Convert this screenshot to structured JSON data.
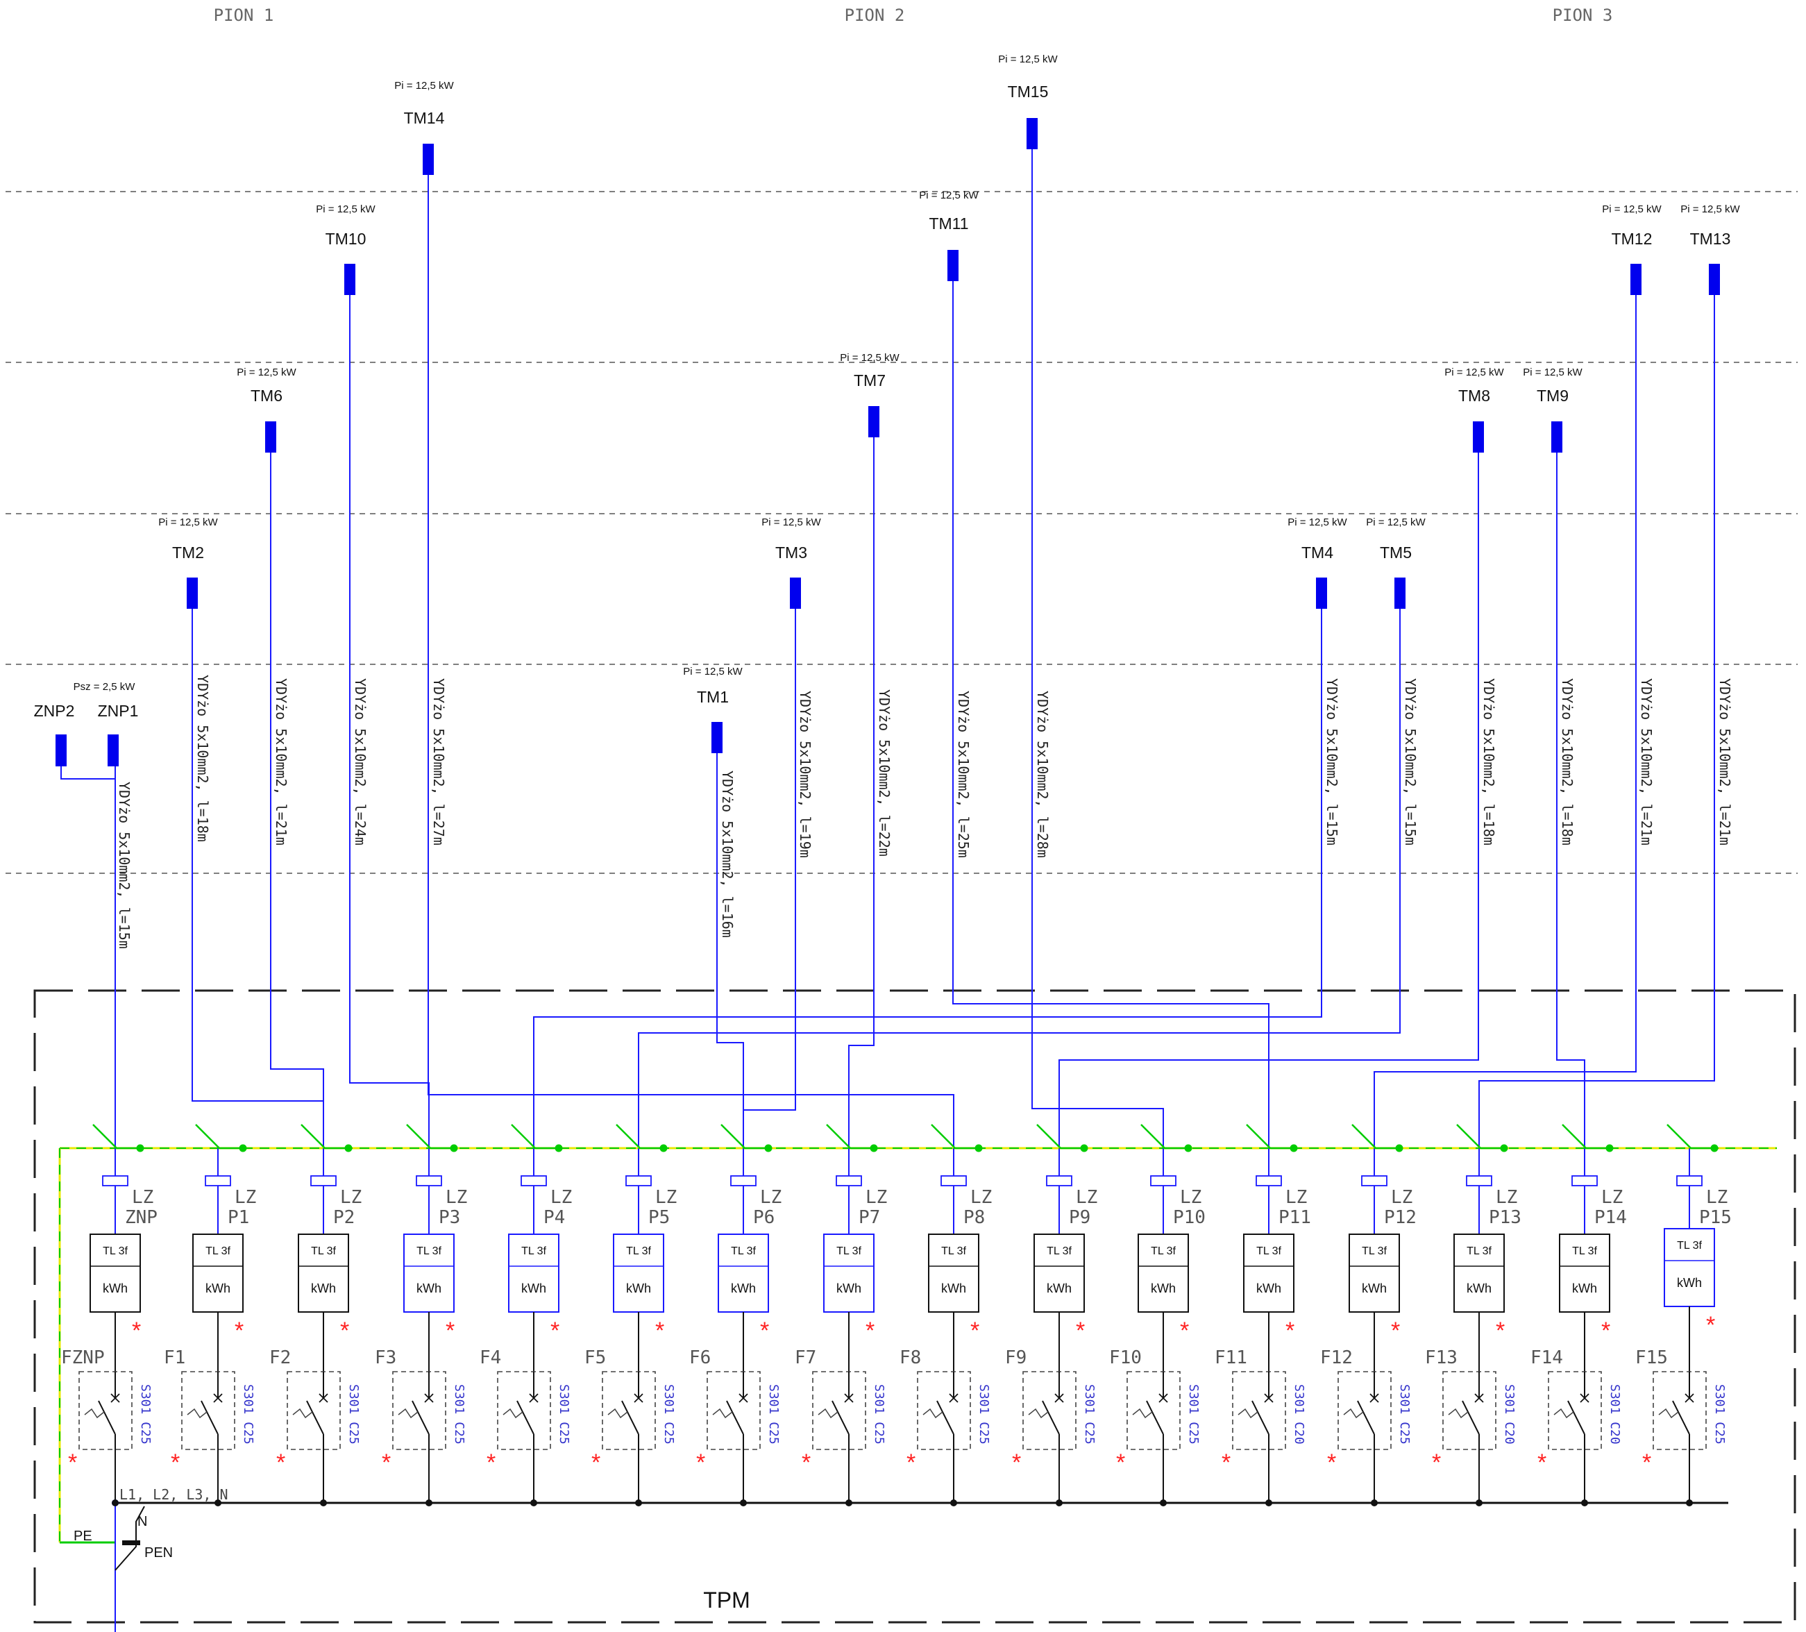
{
  "title": "TPM",
  "risers": [
    {
      "label": "PION 1"
    },
    {
      "label": "PION 2"
    },
    {
      "label": "PION 3"
    }
  ],
  "connectors": [
    "ZNP2",
    "ZNP1"
  ],
  "znp_power": "Psz = 2,5 kW",
  "znp_cable": "YDYżo 5x10mm2, l=15m",
  "loads": [
    {
      "name": "TM1",
      "power": "Pi = 12,5 kW",
      "cable": "YDYżo 5x10mm2, l=16m"
    },
    {
      "name": "TM2",
      "power": "Pi = 12,5 kW",
      "cable": "YDYżo 5x10mm2, l=18m"
    },
    {
      "name": "TM3",
      "power": "Pi = 12,5 kW",
      "cable": "YDYżo 5x10mm2, l=19m"
    },
    {
      "name": "TM4",
      "power": "Pi = 12,5 kW",
      "cable": "YDYżo 5x10mm2, l=15m"
    },
    {
      "name": "TM5",
      "power": "Pi = 12,5 kW",
      "cable": "YDYżo 5x10mm2, l=15m"
    },
    {
      "name": "TM6",
      "power": "Pi = 12,5 kW",
      "cable": "YDYżo 5x10mm2, l=21m"
    },
    {
      "name": "TM7",
      "power": "Pi = 12,5 kW",
      "cable": "YDYżo 5x10mm2, l=22m"
    },
    {
      "name": "TM8",
      "power": "Pi = 12,5 kW",
      "cable": "YDYżo 5x10mm2, l=18m"
    },
    {
      "name": "TM9",
      "power": "Pi = 12,5 kW",
      "cable": "YDYżo 5x10mm2, l=18m"
    },
    {
      "name": "TM10",
      "power": "Pi = 12,5 kW",
      "cable": "YDYżo 5x10mm2, l=24m"
    },
    {
      "name": "TM11",
      "power": "Pi = 12,5 kW",
      "cable": "YDYżo 5x10mm2, l=25m"
    },
    {
      "name": "TM12",
      "power": "Pi = 12,5 kW",
      "cable": "YDYżo 5x10mm2, l=21m"
    },
    {
      "name": "TM13",
      "power": "Pi = 12,5 kW",
      "cable": "YDYżo 5x10mm2, l=21m"
    },
    {
      "name": "TM14",
      "power": "Pi = 12,5 kW",
      "cable": "YDYżo 5x10mm2, l=27m"
    },
    {
      "name": "TM15",
      "power": "Pi = 12,5 kW",
      "cable": "YDYżo 5x10mm2, l=28m"
    }
  ],
  "circuits": [
    {
      "lz": "LZ",
      "p": "ZNP",
      "fuse": "FZNP",
      "breaker": "S301 C25",
      "meter": "TL 3f",
      "unit": "kWh"
    },
    {
      "lz": "LZ",
      "p": "P1",
      "fuse": "F1",
      "breaker": "S301 C25",
      "meter": "TL 3f",
      "unit": "kWh"
    },
    {
      "lz": "LZ",
      "p": "P2",
      "fuse": "F2",
      "breaker": "S301 C25",
      "meter": "TL 3f",
      "unit": "kWh"
    },
    {
      "lz": "LZ",
      "p": "P3",
      "fuse": "F3",
      "breaker": "S301 C25",
      "meter": "TL 3f",
      "unit": "kWh"
    },
    {
      "lz": "LZ",
      "p": "P4",
      "fuse": "F4",
      "breaker": "S301 C25",
      "meter": "TL 3f",
      "unit": "kWh"
    },
    {
      "lz": "LZ",
      "p": "P5",
      "fuse": "F5",
      "breaker": "S301 C25",
      "meter": "TL 3f",
      "unit": "kWh"
    },
    {
      "lz": "LZ",
      "p": "P6",
      "fuse": "F6",
      "breaker": "S301 C25",
      "meter": "TL 3f",
      "unit": "kWh"
    },
    {
      "lz": "LZ",
      "p": "P7",
      "fuse": "F7",
      "breaker": "S301 C25",
      "meter": "TL 3f",
      "unit": "kWh"
    },
    {
      "lz": "LZ",
      "p": "P8",
      "fuse": "F8",
      "breaker": "S301 C25",
      "meter": "TL 3f",
      "unit": "kWh"
    },
    {
      "lz": "LZ",
      "p": "P9",
      "fuse": "F9",
      "breaker": "S301 C25",
      "meter": "TL 3f",
      "unit": "kWh"
    },
    {
      "lz": "LZ",
      "p": "P10",
      "fuse": "F10",
      "breaker": "S301 C25",
      "meter": "TL 3f",
      "unit": "kWh"
    },
    {
      "lz": "LZ",
      "p": "P11",
      "fuse": "F11",
      "breaker": "S301 C20",
      "meter": "TL 3f",
      "unit": "kWh"
    },
    {
      "lz": "LZ",
      "p": "P12",
      "fuse": "F12",
      "breaker": "S301 C25",
      "meter": "TL 3f",
      "unit": "kWh"
    },
    {
      "lz": "LZ",
      "p": "P13",
      "fuse": "F13",
      "breaker": "S301 C20",
      "meter": "TL 3f",
      "unit": "kWh"
    },
    {
      "lz": "LZ",
      "p": "P14",
      "fuse": "F14",
      "breaker": "S301 C20",
      "meter": "TL 3f",
      "unit": "kWh"
    },
    {
      "lz": "LZ",
      "p": "P15",
      "fuse": "F15",
      "breaker": "S301 C25",
      "meter": "TL 3f",
      "unit": "kWh"
    }
  ],
  "busbar_label": "L1, L2, L3, N",
  "n_label": "N",
  "pe_label": "PE",
  "pen_label": "PEN",
  "star_mark": "*",
  "colors": {
    "wire": "#1a1aff",
    "load_block": "#0000ee",
    "ground": "#00cc00",
    "pe": "#e8e800",
    "star": "#ff2222",
    "black": "#111111",
    "dash": "#555555"
  }
}
